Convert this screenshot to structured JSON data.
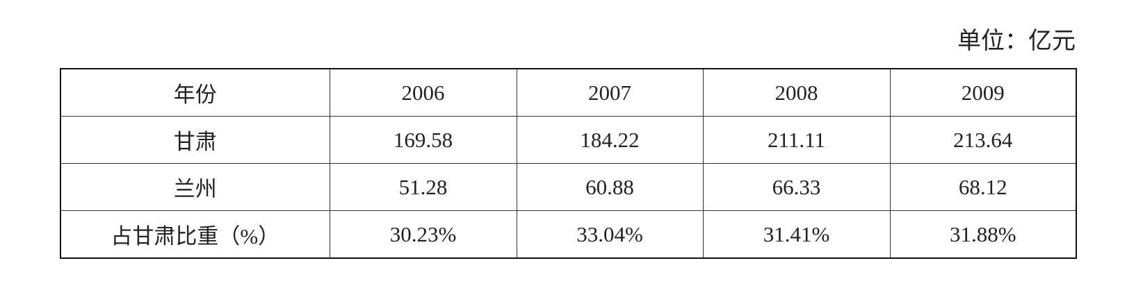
{
  "unit": "单位：亿元",
  "table": {
    "header": [
      "年份",
      "2006",
      "2007",
      "2008",
      "2009"
    ],
    "rows": [
      [
        "甘肃",
        "169.58",
        "184.22",
        "211.11",
        "213.64"
      ],
      [
        "兰州",
        "51.28",
        "60.88",
        "66.33",
        "68.12"
      ],
      [
        "占甘肃比重（%）",
        "30.23%",
        "33.04%",
        "31.41%",
        "31.88%"
      ]
    ]
  }
}
